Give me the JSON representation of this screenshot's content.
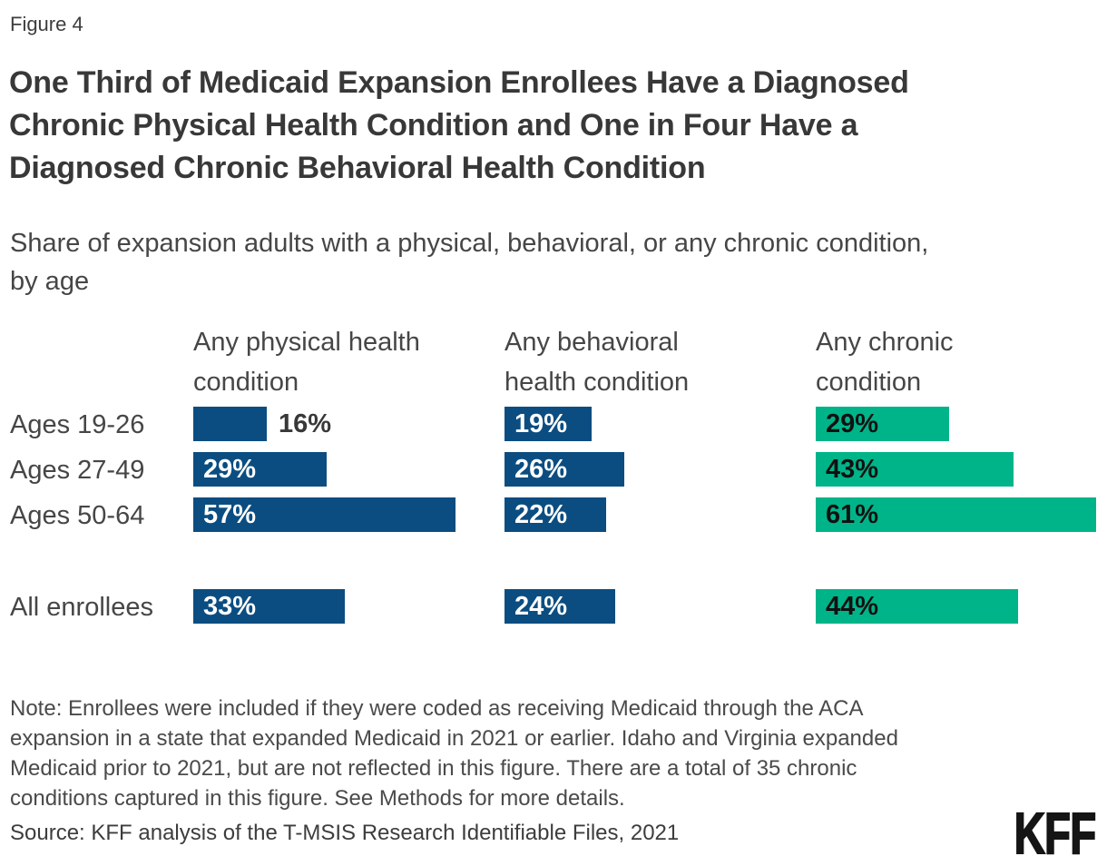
{
  "figure_label": "Figure 4",
  "title_lines": [
    "One Third of Medicaid Expansion Enrollees Have a Diagnosed",
    "Chronic Physical Health Condition and One in Four Have a",
    "Diagnosed Chronic Behavioral Health Condition"
  ],
  "subtitle_lines": [
    "Share of expansion adults with a physical, behavioral, or any chronic condition,",
    "by age"
  ],
  "columns": [
    {
      "header_lines": [
        "Any physical health",
        "condition"
      ]
    },
    {
      "header_lines": [
        "Any behavioral",
        "health condition"
      ]
    },
    {
      "header_lines": [
        "Any chronic",
        "condition"
      ]
    }
  ],
  "chart_data": {
    "type": "bar",
    "orientation": "horizontal",
    "unit": "%",
    "grid": false,
    "xlim": [
      0,
      61
    ],
    "value_labels": true,
    "categories": [
      "Ages 19-26",
      "Ages 27-49",
      "Ages 50-64",
      "All enrollees"
    ],
    "series": [
      {
        "name": "Any physical health condition",
        "values": [
          16,
          29,
          57,
          33
        ],
        "color": "#0B4D81",
        "label_color": "#FFFFFF"
      },
      {
        "name": "Any behavioral health condition",
        "values": [
          19,
          26,
          22,
          24
        ],
        "color": "#0B4D81",
        "label_color": "#FFFFFF"
      },
      {
        "name": "Any chronic condition",
        "values": [
          29,
          43,
          61,
          44
        ],
        "color": "#00B489",
        "label_color": "#111111"
      }
    ],
    "outside_label_color": "#383838"
  },
  "note_lines": [
    "Note: Enrollees were included if they were coded as receiving Medicaid through the ACA",
    "expansion in a state that expanded Medicaid in 2021 or earlier. Idaho and Virginia expanded",
    "Medicaid prior to 2021, but are not reflected in this figure. There are a total of 35 chronic",
    "conditions captured in this figure. See Methods for more details."
  ],
  "source": "Source: KFF analysis of the T-MSIS Research Identifiable Files, 2021",
  "logo_text": "KFF"
}
